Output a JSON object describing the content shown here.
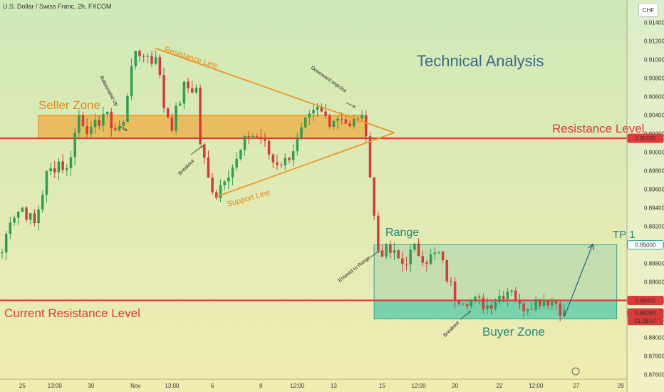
{
  "header": {
    "symbol_title": "U.S. Dollar / Swiss Franc, 2h, FXCOM",
    "currency_badge": "CHF"
  },
  "colors": {
    "bg_top": "#cfe9b8",
    "bg_bottom": "#f0ecb0",
    "up": "#2e9e54",
    "down": "#d63a3a",
    "resistance": "#e03a3a",
    "triangle": "#f0962a",
    "seller_zone": "#f0a83a",
    "range": "#2ea89a",
    "buyer_zone": "#2ec0a6",
    "title": "#3e6a8a"
  },
  "chart_data": {
    "type": "candlestick",
    "y_axis": {
      "ylim": [
        0.8755,
        0.9155
      ],
      "ticks": [
        "0.91400",
        "0.91200",
        "0.91000",
        "0.90800",
        "0.90600",
        "0.90400",
        "0.90200",
        "0.90000",
        "0.89800",
        "0.89600",
        "0.89400",
        "0.89200",
        "0.89000",
        "0.88800",
        "0.88600",
        "0.88400",
        "0.88200",
        "0.88000",
        "0.87800",
        "0.87600"
      ],
      "tick_values": [
        0.914,
        0.912,
        0.91,
        0.908,
        0.906,
        0.904,
        0.902,
        0.9,
        0.898,
        0.896,
        0.894,
        0.892,
        0.89,
        0.888,
        0.886,
        0.884,
        0.882,
        0.88,
        0.878,
        0.876
      ]
    },
    "x_axis": {
      "ticks": [
        "25",
        "13:00",
        "30",
        "Nov",
        "13:00",
        "6",
        "8",
        "12:00",
        "13",
        "15",
        "12:00",
        "20",
        "22",
        "12:00",
        "27",
        "29"
      ],
      "tick_index": [
        5,
        13,
        22,
        33,
        42,
        52,
        64,
        73,
        82,
        94,
        103,
        112,
        123,
        132,
        142,
        153
      ]
    },
    "price_path": [
      [
        0,
        0.8892
      ],
      [
        2,
        0.893
      ],
      [
        5,
        0.894
      ],
      [
        8,
        0.8922
      ],
      [
        11,
        0.8975
      ],
      [
        14,
        0.899
      ],
      [
        16,
        0.898
      ],
      [
        19,
        0.904
      ],
      [
        22,
        0.902
      ],
      [
        25,
        0.9042
      ],
      [
        28,
        0.9025
      ],
      [
        30,
        0.903
      ],
      [
        32,
        0.9098
      ],
      [
        35,
        0.9108
      ],
      [
        37,
        0.9098
      ],
      [
        38,
        0.9108
      ],
      [
        40,
        0.905
      ],
      [
        42,
        0.903
      ],
      [
        45,
        0.907
      ],
      [
        48,
        0.9068
      ],
      [
        49,
        0.901
      ],
      [
        51,
        0.897
      ],
      [
        53,
        0.8955
      ],
      [
        55,
        0.8975
      ],
      [
        58,
        0.899
      ],
      [
        61,
        0.902
      ],
      [
        64,
        0.9015
      ],
      [
        67,
        0.899
      ],
      [
        70,
        0.899
      ],
      [
        73,
        0.9012
      ],
      [
        75,
        0.903
      ],
      [
        78,
        0.9045
      ],
      [
        81,
        0.9035
      ],
      [
        84,
        0.904
      ],
      [
        86,
        0.9025
      ],
      [
        88,
        0.904
      ],
      [
        90,
        0.9025
      ],
      [
        91,
        0.8975
      ],
      [
        92,
        0.893
      ],
      [
        93,
        0.8895
      ],
      [
        96,
        0.8892
      ],
      [
        99,
        0.888
      ],
      [
        102,
        0.8895
      ],
      [
        105,
        0.8885
      ],
      [
        108,
        0.889
      ],
      [
        110,
        0.8865
      ],
      [
        112,
        0.8845
      ],
      [
        116,
        0.884
      ],
      [
        120,
        0.8835
      ],
      [
        123,
        0.8845
      ],
      [
        126,
        0.8855
      ],
      [
        128,
        0.8832
      ],
      [
        131,
        0.8838
      ],
      [
        134,
        0.8842
      ],
      [
        137,
        0.8838
      ],
      [
        139,
        0.8825
      ]
    ],
    "levels": [
      {
        "name": "Resistance Level",
        "value": 0.9015,
        "label": "0.90150"
      },
      {
        "name": "Current Resistance Level",
        "value": 0.884,
        "label": "0.88400"
      }
    ],
    "price_tags": [
      {
        "label": "0.89000",
        "value": 0.89,
        "style": "outline"
      },
      {
        "label": "0.88264",
        "value": 0.88264,
        "style": "down"
      }
    ],
    "countdown": "01:28:57",
    "zones": [
      {
        "name": "Seller Zone",
        "start": 9,
        "end": 90,
        "low": 0.9015,
        "high": 0.904
      },
      {
        "name": "Range",
        "start": 92,
        "end": 152,
        "low": 0.884,
        "high": 0.89
      },
      {
        "name": "Buyer Zone",
        "start": 92,
        "end": 152,
        "low": 0.882,
        "high": 0.884
      }
    ],
    "triangle": {
      "apex_index": 97,
      "apex_value": 0.9021,
      "top_start_index": 38,
      "top_start_value": 0.9112,
      "bottom_start_index": 53,
      "bottom_start_value": 0.8952
    },
    "annotations": {
      "title": "Technical Analysis",
      "seller_zone": "Seller Zone",
      "resistance_line": "Resistance Line",
      "support_line": "Support Line",
      "resistance_level": "Resistance Level",
      "range": "Range",
      "tp1": "TP 1",
      "current_resistance": "Current Resistance Level",
      "buyer_zone": "Buyer Zone",
      "rebounded_up": "Rebounded Up",
      "breakout_1": "Breakout",
      "downward_impulse": "Downward Impulse",
      "entered_range": "Entered to Range",
      "breakout_2": "Breakout"
    },
    "projection": [
      [
        139,
        0.8822
      ],
      [
        146,
        0.89
      ]
    ]
  }
}
